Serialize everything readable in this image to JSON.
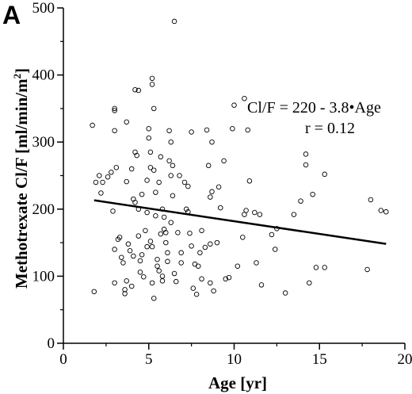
{
  "chart_data": {
    "type": "scatter",
    "panel_label": "A",
    "xlabel": "Age [yr]",
    "ylabel_main": "Methotrexate Cl/F [ml/min/m",
    "ylabel_sup": "2",
    "ylabel_end": "]",
    "xlim": [
      0,
      20
    ],
    "ylim": [
      0,
      500
    ],
    "xticks": [
      0,
      5,
      10,
      15,
      20
    ],
    "yticks": [
      0,
      100,
      200,
      300,
      400,
      500
    ],
    "grid": false,
    "annotations": {
      "equation": "Cl/F = 220 - 3.8•Age",
      "r_value": "r = 0.12"
    },
    "regression": {
      "intercept": 220,
      "slope": -3.8,
      "x_range": [
        1.8,
        18.9
      ]
    },
    "points": [
      [
        1.7,
        325
      ],
      [
        1.8,
        77
      ],
      [
        1.9,
        240
      ],
      [
        2.1,
        250
      ],
      [
        2.2,
        224
      ],
      [
        2.3,
        240
      ],
      [
        2.6,
        248
      ],
      [
        2.8,
        255
      ],
      [
        2.9,
        197
      ],
      [
        3.0,
        350
      ],
      [
        3.0,
        347
      ],
      [
        3.0,
        317
      ],
      [
        3.1,
        262
      ],
      [
        3.0,
        140
      ],
      [
        3.0,
        90
      ],
      [
        3.2,
        155
      ],
      [
        3.3,
        158
      ],
      [
        3.4,
        128
      ],
      [
        3.5,
        120
      ],
      [
        3.6,
        80
      ],
      [
        3.7,
        93
      ],
      [
        3.7,
        241
      ],
      [
        3.8,
        148
      ],
      [
        3.9,
        138
      ],
      [
        3.7,
        330
      ],
      [
        4.0,
        260
      ],
      [
        3.6,
        74
      ],
      [
        4.0,
        85
      ],
      [
        4.1,
        215
      ],
      [
        4.2,
        210
      ],
      [
        4.2,
        285
      ],
      [
        4.2,
        378
      ],
      [
        4.1,
        130
      ],
      [
        4.3,
        280
      ],
      [
        4.4,
        160
      ],
      [
        4.4,
        200
      ],
      [
        4.5,
        123
      ],
      [
        4.5,
        106
      ],
      [
        4.6,
        132
      ],
      [
        4.6,
        222
      ],
      [
        4.7,
        99
      ],
      [
        4.8,
        168
      ],
      [
        4.9,
        243
      ],
      [
        4.9,
        195
      ],
      [
        4.4,
        377
      ],
      [
        4.9,
        144
      ],
      [
        5.0,
        320
      ],
      [
        5.0,
        306
      ],
      [
        5.1,
        285
      ],
      [
        5.2,
        395
      ],
      [
        5.2,
        386
      ],
      [
        5.1,
        262
      ],
      [
        5.1,
        152
      ],
      [
        5.2,
        144
      ],
      [
        5.2,
        90
      ],
      [
        5.3,
        67
      ],
      [
        5.3,
        258
      ],
      [
        5.3,
        350
      ],
      [
        5.4,
        225
      ],
      [
        5.4,
        190
      ],
      [
        5.5,
        125
      ],
      [
        5.5,
        115
      ],
      [
        5.6,
        108
      ],
      [
        5.7,
        278
      ],
      [
        5.6,
        240
      ],
      [
        5.7,
        163
      ],
      [
        5.8,
        100
      ],
      [
        5.8,
        93
      ],
      [
        5.8,
        200
      ],
      [
        5.9,
        188
      ],
      [
        5.9,
        170
      ],
      [
        6.0,
        165
      ],
      [
        6.0,
        150
      ],
      [
        6.1,
        135
      ],
      [
        6.1,
        122
      ],
      [
        6.2,
        272
      ],
      [
        6.2,
        317
      ],
      [
        6.3,
        300
      ],
      [
        6.3,
        250
      ],
      [
        6.3,
        180
      ],
      [
        6.4,
        265
      ],
      [
        6.4,
        220
      ],
      [
        6.5,
        104
      ],
      [
        6.5,
        480
      ],
      [
        6.6,
        92
      ],
      [
        6.7,
        165
      ],
      [
        6.8,
        250
      ],
      [
        6.9,
        120
      ],
      [
        6.9,
        135
      ],
      [
        7.1,
        240
      ],
      [
        7.2,
        200
      ],
      [
        7.3,
        234
      ],
      [
        7.3,
        196
      ],
      [
        7.4,
        164
      ],
      [
        7.5,
        145
      ],
      [
        7.5,
        315
      ],
      [
        7.6,
        82
      ],
      [
        7.7,
        118
      ],
      [
        7.9,
        115
      ],
      [
        8.0,
        135
      ],
      [
        7.8,
        73
      ],
      [
        8.1,
        168
      ],
      [
        8.1,
        96
      ],
      [
        8.3,
        143
      ],
      [
        8.4,
        318
      ],
      [
        8.5,
        265
      ],
      [
        8.6,
        218
      ],
      [
        8.6,
        90
      ],
      [
        8.6,
        148
      ],
      [
        8.7,
        300
      ],
      [
        8.7,
        226
      ],
      [
        8.8,
        78
      ],
      [
        9.0,
        150
      ],
      [
        9.1,
        233
      ],
      [
        9.2,
        202
      ],
      [
        9.4,
        272
      ],
      [
        9.5,
        96
      ],
      [
        9.7,
        98
      ],
      [
        9.9,
        320
      ],
      [
        10.0,
        355
      ],
      [
        10.2,
        115
      ],
      [
        10.5,
        158
      ],
      [
        10.6,
        192
      ],
      [
        10.6,
        365
      ],
      [
        10.7,
        198
      ],
      [
        10.8,
        318
      ],
      [
        10.9,
        242
      ],
      [
        11.2,
        195
      ],
      [
        11.3,
        120
      ],
      [
        11.5,
        192
      ],
      [
        11.6,
        87
      ],
      [
        12.2,
        162
      ],
      [
        12.4,
        140
      ],
      [
        12.5,
        171
      ],
      [
        13.0,
        75
      ],
      [
        13.5,
        192
      ],
      [
        13.9,
        212
      ],
      [
        14.2,
        282
      ],
      [
        14.2,
        266
      ],
      [
        14.4,
        90
      ],
      [
        14.6,
        222
      ],
      [
        14.8,
        113
      ],
      [
        15.3,
        252
      ],
      [
        15.3,
        113
      ],
      [
        17.8,
        110
      ],
      [
        18.0,
        214
      ],
      [
        18.6,
        198
      ],
      [
        18.9,
        196
      ]
    ]
  }
}
